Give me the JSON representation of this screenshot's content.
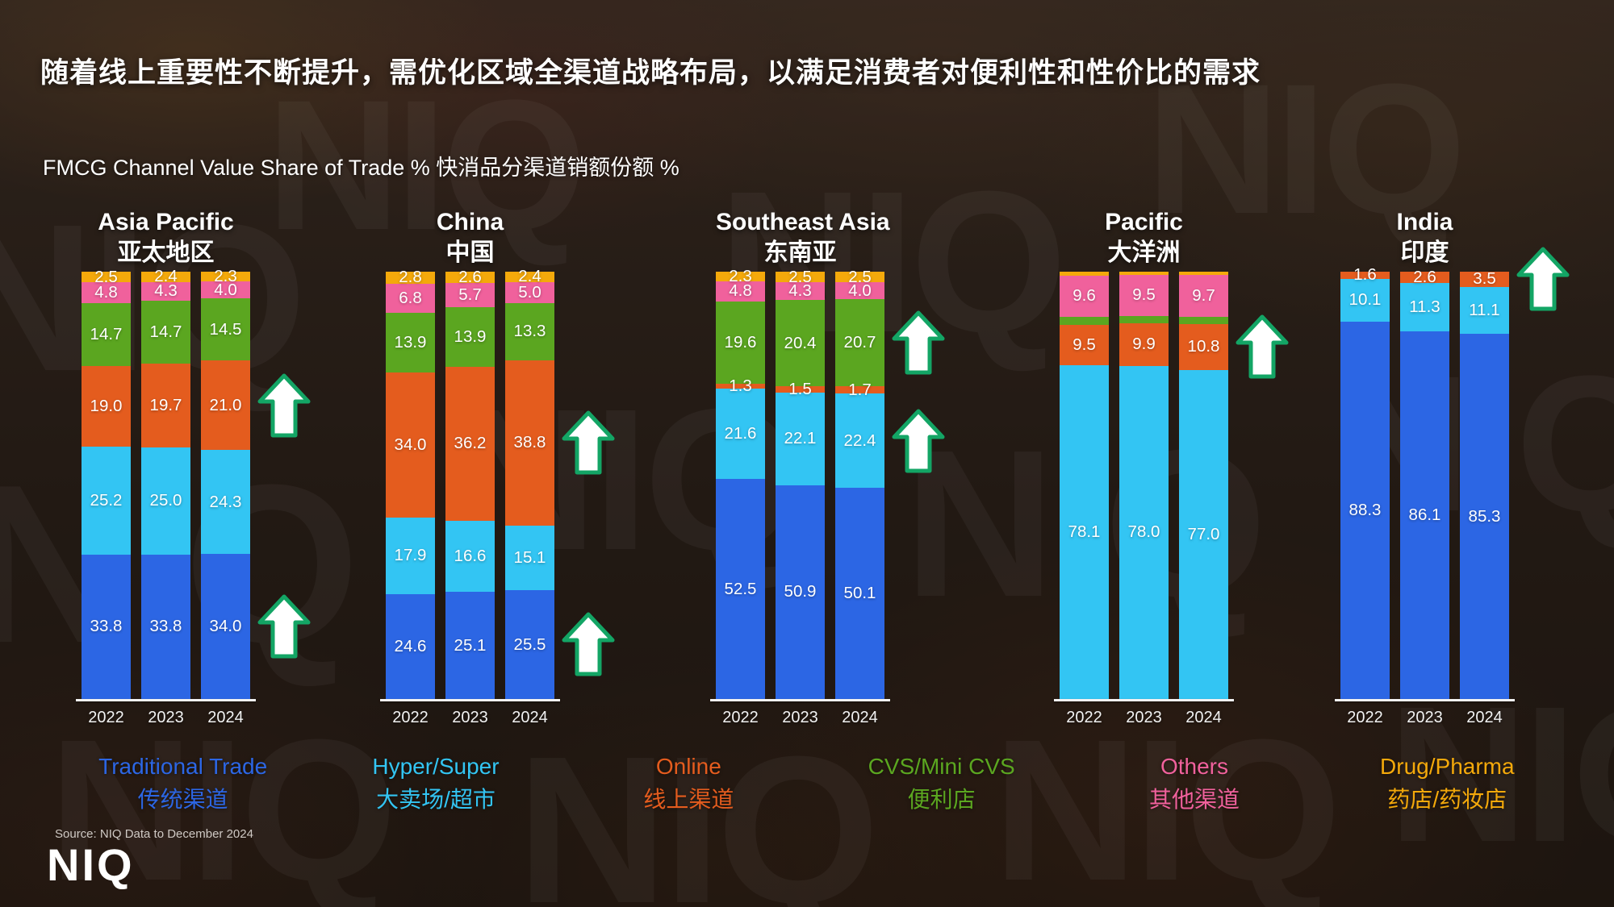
{
  "page": {
    "title": "随着线上重要性不断提升，需优化区域全渠道战略布局，以满足消费者对便利性和性价比的需求",
    "subtitle": "FMCG Channel Value Share of Trade % 快消品分渠道销额份额 %",
    "source": "Source: NIQ Data to December 2024",
    "logo_text": "NIQ",
    "watermark_text": "NIQ"
  },
  "chart_data": {
    "type": "bar",
    "variant": "100%-stacked columns, one column per year, five region panels",
    "unit": "% value share of trade",
    "years": [
      "2022",
      "2023",
      "2024"
    ],
    "stack_order_bottom_to_top": [
      "traditional",
      "hyper",
      "online",
      "cvs",
      "others",
      "drug"
    ],
    "channels": [
      {
        "id": "traditional",
        "label_en": "Traditional Trade",
        "label_zh": "传统渠道",
        "color": "#2C66E4"
      },
      {
        "id": "hyper",
        "label_en": "Hyper/Super",
        "label_zh": "大卖场/超市",
        "color": "#33C5F3"
      },
      {
        "id": "online",
        "label_en": "Online",
        "label_zh": "线上渠道",
        "color": "#E45C1E"
      },
      {
        "id": "cvs",
        "label_en": "CVS/Mini CVS",
        "label_zh": "便利店",
        "color": "#5BA620"
      },
      {
        "id": "others",
        "label_en": "Others",
        "label_zh": "其他渠道",
        "color": "#F0619C"
      },
      {
        "id": "drug",
        "label_en": "Drug/Pharma",
        "label_zh": "药店/药妆店",
        "color": "#F4A90B"
      }
    ],
    "regions": [
      {
        "name_en": "Asia Pacific",
        "name_zh": "亚太地区",
        "values": {
          "traditional": [
            33.8,
            33.8,
            34.0
          ],
          "hyper": [
            25.2,
            25.0,
            24.3
          ],
          "online": [
            19.0,
            19.7,
            21.0
          ],
          "cvs": [
            14.7,
            14.7,
            14.5
          ],
          "others": [
            4.8,
            4.3,
            4.0
          ],
          "drug": [
            2.5,
            2.4,
            2.3
          ]
        },
        "unlabeled_channels": [],
        "growth_arrows": [
          {
            "channel": "online",
            "year": "2024"
          },
          {
            "channel": "traditional",
            "year": "2024"
          }
        ]
      },
      {
        "name_en": "China",
        "name_zh": "中国",
        "values": {
          "traditional": [
            24.6,
            25.1,
            25.5
          ],
          "hyper": [
            17.9,
            16.6,
            15.1
          ],
          "online": [
            34.0,
            36.2,
            38.8
          ],
          "cvs": [
            13.9,
            13.9,
            13.3
          ],
          "others": [
            6.8,
            5.7,
            5.0
          ],
          "drug": [
            2.8,
            2.6,
            2.4
          ]
        },
        "unlabeled_channels": [],
        "growth_arrows": [
          {
            "channel": "online",
            "year": "2024"
          },
          {
            "channel": "traditional",
            "year": "2024"
          }
        ]
      },
      {
        "name_en": "Southeast Asia",
        "name_zh": "东南亚",
        "values": {
          "traditional": [
            52.5,
            50.9,
            50.1
          ],
          "hyper": [
            21.6,
            22.1,
            22.4
          ],
          "online": [
            1.3,
            1.5,
            1.7
          ],
          "cvs": [
            19.6,
            20.4,
            20.7
          ],
          "others": [
            4.8,
            4.3,
            4.0
          ],
          "drug": [
            2.3,
            2.5,
            2.5
          ]
        },
        "unlabeled_channels": [],
        "growth_arrows": [
          {
            "channel": "cvs",
            "year": "2024"
          },
          {
            "channel": "hyper",
            "year": "2024"
          }
        ]
      },
      {
        "name_en": "Pacific",
        "name_zh": "大洋洲",
        "values": {
          "hyper": [
            78.1,
            78.0,
            77.0
          ],
          "online": [
            9.5,
            9.9,
            10.8
          ],
          "cvs": [
            1.9,
            1.8,
            1.7
          ],
          "others": [
            9.6,
            9.5,
            9.7
          ],
          "drug": [
            0.9,
            0.8,
            0.8
          ]
        },
        "unlabeled_channels": [
          "cvs",
          "drug"
        ],
        "note": "cvs and drug slices carry no data label in the chart; values estimated from slice heights",
        "growth_arrows": [
          {
            "channel": "online",
            "year": "2024"
          }
        ]
      },
      {
        "name_en": "India",
        "name_zh": "印度",
        "values": {
          "traditional": [
            88.3,
            86.1,
            85.3
          ],
          "hyper": [
            10.1,
            11.3,
            11.1
          ],
          "online": [
            1.6,
            2.6,
            3.5
          ]
        },
        "unlabeled_channels": [],
        "growth_arrows": [
          {
            "channel": "online",
            "year": "2024"
          }
        ]
      }
    ],
    "arrow_color": "#13A565",
    "axis_color": "#F2F2F2",
    "legend_position": "bottom"
  }
}
